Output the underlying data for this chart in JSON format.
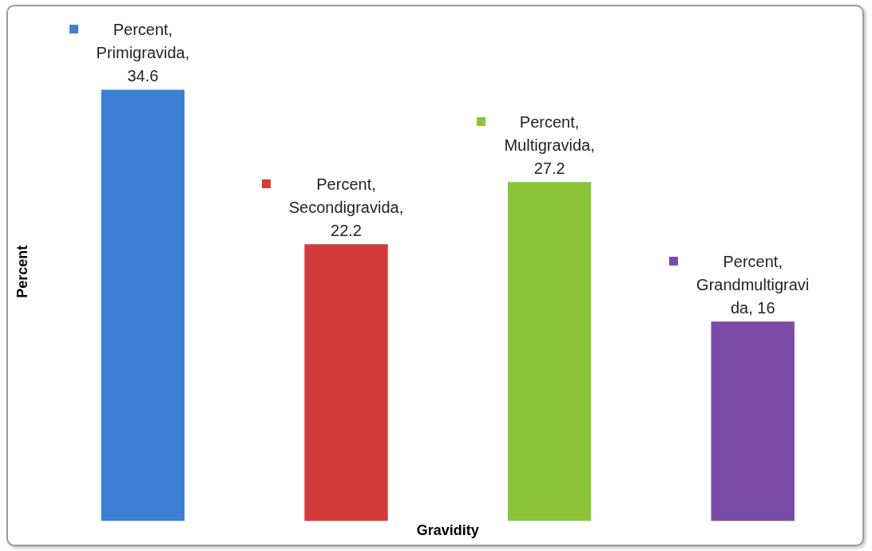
{
  "chart_data": {
    "type": "bar",
    "xlabel": "Gravidity",
    "ylabel": "Percent",
    "categories": [
      null,
      null,
      null,
      null
    ],
    "values": [
      34.6,
      22.2,
      27.2,
      16
    ],
    "colors": [
      "#3c7fd4",
      "#d33b3b",
      "#8cc43a",
      "#7b4aa6"
    ],
    "value_labels": [
      "Percent,\nPrimigravida,\n34.6",
      "Percent,\nSecondigravida,\n22.2",
      "Percent,\nMultigravida,\n27.2",
      "Percent,\nGrandmultigravi\nda, 16"
    ],
    "legend": false,
    "grid": false
  }
}
